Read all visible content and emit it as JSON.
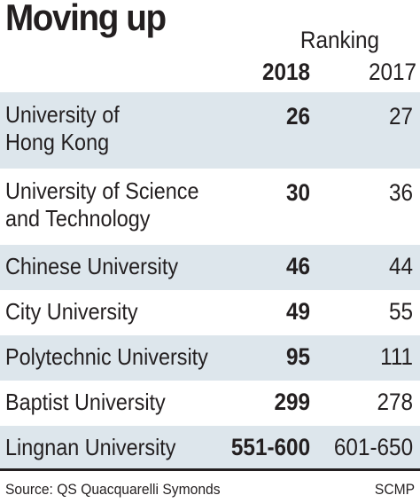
{
  "title": "Moving up",
  "header": {
    "group_label": "Ranking",
    "col_2018": "2018",
    "col_2017": "2017"
  },
  "chart_data": {
    "type": "table",
    "title": "Moving up",
    "group_label": "Ranking",
    "columns": [
      "2018",
      "2017"
    ],
    "rows": [
      {
        "name": "University of Hong Kong",
        "lines": [
          "University of",
          "Hong Kong"
        ],
        "y2018": "26",
        "y2017": "27"
      },
      {
        "name": "University of Science and Technology",
        "lines": [
          "University of Science",
          "and Technology"
        ],
        "y2018": "30",
        "y2017": "36"
      },
      {
        "name": "Chinese University",
        "lines": [
          "Chinese University"
        ],
        "y2018": "46",
        "y2017": "44"
      },
      {
        "name": "City University",
        "lines": [
          "City University"
        ],
        "y2018": "49",
        "y2017": "55"
      },
      {
        "name": "Polytechnic University",
        "lines": [
          "Polytechnic University"
        ],
        "y2018": "95",
        "y2017": "111"
      },
      {
        "name": "Baptist University",
        "lines": [
          "Baptist University"
        ],
        "y2018": "299",
        "y2017": "278"
      },
      {
        "name": "Lingnan University",
        "lines": [
          "Lingnan University"
        ],
        "y2018": "551-600",
        "y2017": "601-650"
      }
    ]
  },
  "footer": {
    "source": "Source: QS Quacquarelli Symonds",
    "credit": "SCMP"
  },
  "colors": {
    "row_shade": "#dde6ec",
    "text": "#231f20"
  }
}
